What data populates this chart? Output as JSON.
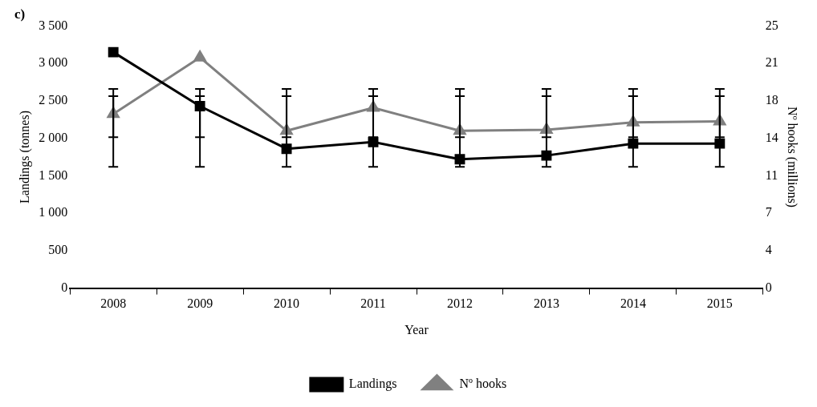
{
  "chart_data": {
    "type": "line",
    "title": "c)",
    "xlabel": "Year",
    "ylabel": "Landings (tonnes)",
    "y2label": "Nº hooks (millions)",
    "categories": [
      "2008",
      "2009",
      "2010",
      "2011",
      "2012",
      "2013",
      "2014",
      "2015"
    ],
    "series": [
      {
        "name": "Landings",
        "color": "#000000",
        "marker": "square",
        "values": [
          3150,
          2430,
          1860,
          1950,
          1720,
          1770,
          1930,
          1930
        ],
        "errors": [
          [
            1620,
            2660
          ],
          [
            1620,
            2660
          ],
          [
            1620,
            2660
          ],
          [
            1620,
            2660
          ],
          [
            1620,
            2660
          ],
          [
            1620,
            2660
          ],
          [
            1620,
            2660
          ],
          [
            1620,
            2660
          ]
        ]
      },
      {
        "name": "Nº hooks",
        "color": "#808080",
        "marker": "triangle",
        "axis": "y2",
        "values": [
          16.6,
          22.0,
          15.0,
          17.2,
          15.0,
          15.1,
          15.8,
          15.9
        ],
        "errors": [
          [
            14.4,
            18.3
          ],
          [
            14.4,
            18.3
          ],
          [
            14.4,
            18.3
          ],
          [
            14.4,
            18.3
          ],
          [
            14.4,
            18.3
          ],
          [
            14.4,
            18.3
          ],
          [
            14.4,
            18.3
          ],
          [
            14.4,
            18.3
          ]
        ]
      }
    ],
    "ylim": [
      0,
      3500
    ],
    "yticks": [
      {
        "value": 0,
        "label": "0"
      },
      {
        "value": 500,
        "label": "500"
      },
      {
        "value": 1000,
        "label": "1 000"
      },
      {
        "value": 1500,
        "label": "1 500"
      },
      {
        "value": 2000,
        "label": "2 000"
      },
      {
        "value": 2500,
        "label": "2 500"
      },
      {
        "value": 3000,
        "label": "3 000"
      },
      {
        "value": 3500,
        "label": "3 500"
      }
    ],
    "y2lim": [
      0,
      25
    ],
    "y2ticks": [
      0,
      {
        "value": 3.571,
        "label": "4"
      },
      {
        "value": 7.143,
        "label": "7"
      },
      {
        "value": 10.714,
        "label": "11"
      },
      {
        "value": 14.286,
        "label": "14"
      },
      {
        "value": 17.857,
        "label": "18"
      },
      {
        "value": 21.429,
        "label": "21"
      },
      25
    ],
    "grid": false,
    "legend": "bottom",
    "line_style": "solid"
  }
}
